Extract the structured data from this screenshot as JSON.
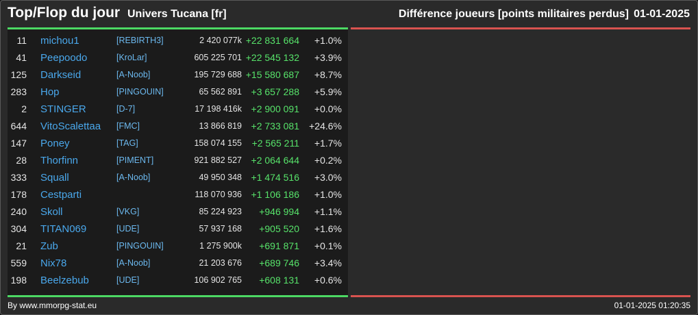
{
  "header": {
    "title": "Top/Flop du jour",
    "subtitle": "Univers Tucana [fr]",
    "ranking_label": "Différence joueurs [points militaires perdus]",
    "date": "01-01-2025"
  },
  "colors": {
    "top_accent": "#4cd964",
    "flop_accent": "#d9534f",
    "player_link": "#4aa8ec",
    "positive_diff": "#57e36a"
  },
  "top_rows": [
    {
      "rank": "11",
      "name": "michou1",
      "alliance": "[REBIRTH3]",
      "points": "2 420 077k",
      "diff": "+22 831 664",
      "pct": "+1.0%"
    },
    {
      "rank": "41",
      "name": "Peepoodo",
      "alliance": "[KroLar]",
      "points": "605 225 701",
      "diff": "+22 545 132",
      "pct": "+3.9%"
    },
    {
      "rank": "125",
      "name": "Darkseid",
      "alliance": "[A-Noob]",
      "points": "195 729 688",
      "diff": "+15 580 687",
      "pct": "+8.7%"
    },
    {
      "rank": "283",
      "name": "Hop",
      "alliance": "[PINGOUIN]",
      "points": "65 562 891",
      "diff": "+3 657 288",
      "pct": "+5.9%"
    },
    {
      "rank": "2",
      "name": "STINGER",
      "alliance": "[D-7]",
      "points": "17 198 416k",
      "diff": "+2 900 091",
      "pct": "+0.0%"
    },
    {
      "rank": "644",
      "name": "VitoScalettaa",
      "alliance": "[FMC]",
      "points": "13 866 819",
      "diff": "+2 733 081",
      "pct": "+24.6%"
    },
    {
      "rank": "147",
      "name": "Poney",
      "alliance": "[TAG]",
      "points": "158 074 155",
      "diff": "+2 565 211",
      "pct": "+1.7%"
    },
    {
      "rank": "28",
      "name": "Thorfinn",
      "alliance": "[PIMENT]",
      "points": "921 882 527",
      "diff": "+2 064 644",
      "pct": "+0.2%"
    },
    {
      "rank": "333",
      "name": "Squall",
      "alliance": "[A-Noob]",
      "points": "49 950 348",
      "diff": "+1 474 516",
      "pct": "+3.0%"
    },
    {
      "rank": "178",
      "name": "Cestparti",
      "alliance": "",
      "points": "118 070 936",
      "diff": "+1 106 186",
      "pct": "+1.0%"
    },
    {
      "rank": "240",
      "name": "Skoll",
      "alliance": "[VKG]",
      "points": "85 224 923",
      "diff": "+946 994",
      "pct": "+1.1%"
    },
    {
      "rank": "304",
      "name": "TITAN069",
      "alliance": "[UDE]",
      "points": "57 937 168",
      "diff": "+905 520",
      "pct": "+1.6%"
    },
    {
      "rank": "21",
      "name": "Zub",
      "alliance": "[PINGOUIN]",
      "points": "1 275 900k",
      "diff": "+691 871",
      "pct": "+0.1%"
    },
    {
      "rank": "559",
      "name": "Nix78",
      "alliance": "[A-Noob]",
      "points": "21 203 676",
      "diff": "+689 746",
      "pct": "+3.4%"
    },
    {
      "rank": "198",
      "name": "Beelzebub",
      "alliance": "[UDE]",
      "points": "106 902 765",
      "diff": "+608 131",
      "pct": "+0.6%"
    }
  ],
  "footer": {
    "credit": "By www.mmorpg-stat.eu",
    "timestamp": "01-01-2025 01:20:35"
  }
}
